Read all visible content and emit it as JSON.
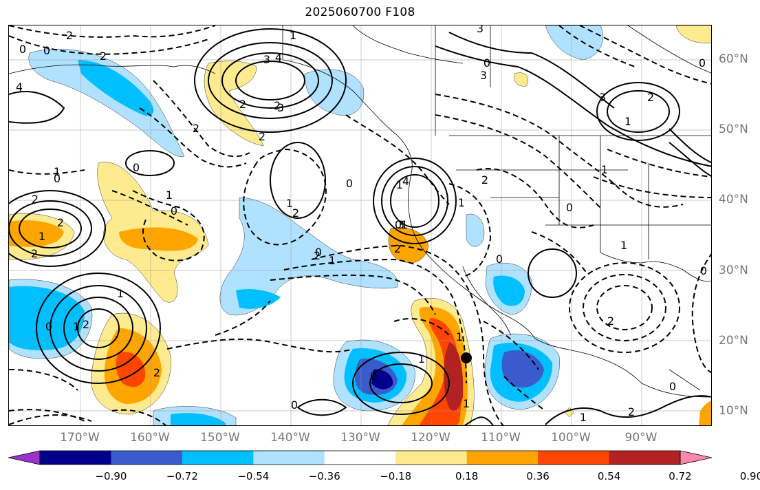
{
  "title": "2025060700 F108",
  "latitude_labels": [
    "60°N",
    "50°N",
    "40°N",
    "30°N",
    "20°N",
    "10°N"
  ],
  "longitude_labels": [
    "170°W",
    "160°W",
    "150°W",
    "140°W",
    "130°W",
    "120°W",
    "110°W",
    "100°W",
    "90°W"
  ],
  "colorbar": {
    "ticks": [
      "−0.90",
      "−0.72",
      "−0.54",
      "−0.36",
      "−0.18",
      "0.18",
      "0.36",
      "0.54",
      "0.72",
      "0.90"
    ],
    "colors": [
      "#9933cc",
      "#00008b",
      "#3a5bcc",
      "#00bfff",
      "#b0e2ff",
      "#ffffff",
      "#ffeb8f",
      "#ffa500",
      "#ff4500",
      "#b22222",
      "#ff88aa"
    ]
  },
  "contour_labels": [
    "1",
    "2",
    "3",
    "4",
    "0",
    "0",
    "2",
    "2",
    "2",
    "3",
    "4",
    "3",
    "0",
    "3",
    "2",
    "2",
    "1",
    "0",
    "0",
    "1",
    "2",
    "1",
    "2",
    "2",
    "0",
    "1",
    "2",
    "0",
    "1",
    "0",
    "1",
    "2",
    "3",
    "4",
    "2",
    "1",
    "2",
    "1",
    "0",
    "1",
    "1",
    "2",
    "0",
    "2",
    "0",
    "0",
    "1",
    "1",
    "1",
    "1",
    "2",
    "0",
    "0",
    "1",
    "0",
    "2",
    "0",
    "3",
    "2",
    "1",
    "1",
    "0"
  ],
  "marker": "storm-center"
}
